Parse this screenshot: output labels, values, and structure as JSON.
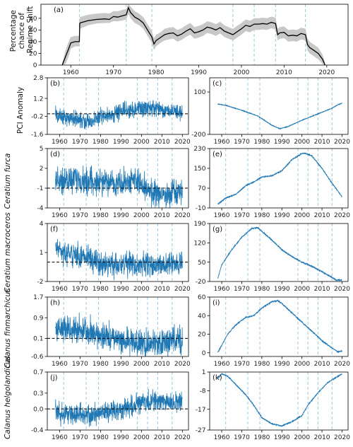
{
  "figure": {
    "line_color": "#1f77b4",
    "black": "#000000",
    "band_color": "#c8c8c8",
    "vline_color": "#9ecae1",
    "vline_years": [
      1962,
      1973,
      1979,
      1998,
      2003,
      2008,
      2015
    ]
  },
  "chart_data": [
    {
      "id": "a",
      "type": "line",
      "label": "(a)",
      "ylabel_lines": [
        "Percentage",
        "chance of",
        "Regime Shift"
      ],
      "xlim": [
        1953,
        2025
      ],
      "ylim": [
        0,
        104
      ],
      "xticks": [
        1960,
        1970,
        1980,
        1990,
        2000,
        2010,
        2020
      ],
      "yticks": [
        0,
        20,
        40,
        60,
        80
      ],
      "series": [
        {
          "x": [
            1958,
            1958.8,
            1959.5,
            1960,
            1961,
            1962,
            1962.1,
            1964,
            1966,
            1968,
            1969,
            1970,
            1971,
            1972,
            1973,
            1973.5,
            1974,
            1975,
            1976,
            1977,
            1978,
            1979,
            1979.5,
            1980,
            1981,
            1982,
            1983,
            1984,
            1985,
            1986,
            1987,
            1988,
            1989,
            1990,
            1991,
            1992,
            1993,
            1994,
            1995,
            1996,
            1997,
            1998,
            1999,
            2000,
            2001,
            2002,
            2003,
            2004,
            2005,
            2006,
            2007,
            2008,
            2008.5,
            2009,
            2010,
            2011,
            2012,
            2013,
            2014,
            2015,
            2015.5,
            2016,
            2017,
            2018,
            2019,
            2019.6
          ],
          "y": [
            0,
            15,
            28,
            38,
            40,
            40,
            72,
            76,
            78,
            79,
            78,
            83,
            82,
            84,
            86,
            98,
            90,
            82,
            78,
            72,
            60,
            48,
            36,
            42,
            47,
            52,
            54,
            55,
            50,
            53,
            58,
            62,
            55,
            57,
            60,
            65,
            63,
            60,
            64,
            58,
            55,
            52,
            57,
            62,
            68,
            66,
            70,
            70,
            71,
            70,
            73,
            71,
            52,
            55,
            56,
            50,
            51,
            50,
            54,
            52,
            35,
            30,
            25,
            20,
            10,
            0
          ],
          "lo": [
            0,
            2,
            15,
            28,
            32,
            32,
            62,
            68,
            71,
            72,
            72,
            75,
            75,
            76,
            78,
            88,
            80,
            72,
            68,
            62,
            50,
            38,
            26,
            32,
            38,
            42,
            44,
            45,
            40,
            43,
            48,
            52,
            45,
            47,
            50,
            55,
            53,
            50,
            54,
            48,
            45,
            42,
            47,
            52,
            58,
            56,
            60,
            60,
            61,
            60,
            63,
            61,
            42,
            45,
            46,
            40,
            41,
            40,
            44,
            42,
            25,
            20,
            15,
            10,
            2,
            0
          ],
          "hi": [
            4,
            26,
            40,
            48,
            50,
            50,
            82,
            86,
            88,
            89,
            88,
            92,
            92,
            94,
            96,
            104,
            100,
            92,
            88,
            82,
            70,
            58,
            46,
            52,
            56,
            62,
            64,
            65,
            60,
            63,
            68,
            72,
            65,
            67,
            70,
            75,
            73,
            70,
            74,
            68,
            65,
            62,
            67,
            72,
            78,
            76,
            80,
            80,
            81,
            80,
            83,
            81,
            62,
            65,
            66,
            60,
            61,
            60,
            64,
            62,
            45,
            40,
            35,
            30,
            18,
            4
          ]
        }
      ]
    },
    {
      "id": "b",
      "type": "line",
      "label": "(b)",
      "ylabel": "PCI Anomaly",
      "xlim": [
        1954,
        2023
      ],
      "ylim": [
        -1.6,
        2.8
      ],
      "yticks": [
        -1.6,
        -0.2,
        1.2,
        2.8
      ],
      "ytick_labels": [
        "-1.6",
        "-0.2",
        "1.2",
        "2.8"
      ],
      "xticks": [
        1960,
        1970,
        1980,
        1990,
        2000,
        2010,
        2020
      ],
      "ref_line": 0,
      "series": [
        {
          "x_start": 1958,
          "x_end": 2020,
          "knots_x": [
            1958,
            1965,
            1972,
            1976,
            1980,
            1986,
            1990,
            1995,
            2000,
            2005,
            2010,
            2015,
            2020
          ],
          "knots_y": [
            -0.1,
            -0.35,
            -0.5,
            -0.65,
            -0.15,
            -0.05,
            0.15,
            0.35,
            0.5,
            0.45,
            0.3,
            0.2,
            0.1
          ],
          "amp": 0.55
        }
      ]
    },
    {
      "id": "c",
      "type": "line",
      "label": "(c)",
      "xlim": [
        1954,
        2023
      ],
      "ylim": [
        -200,
        200
      ],
      "yticks": [
        -200,
        100
      ],
      "ytick_labels": [
        "-200",
        "100"
      ],
      "xticks": [
        1960,
        1970,
        1980,
        1990,
        2000,
        2010,
        2020
      ],
      "series": [
        {
          "x": [
            1958,
            1962,
            1970,
            1978,
            1985,
            1989,
            1993,
            2000,
            2008,
            2015,
            2018,
            2020
          ],
          "y": [
            15,
            5,
            -30,
            -70,
            -135,
            -160,
            -145,
            -100,
            -55,
            -15,
            10,
            20
          ],
          "noise": 4
        }
      ]
    },
    {
      "id": "d",
      "type": "line",
      "label": "(d)",
      "ylabel": "Ceratium furca",
      "xlim": [
        1954,
        2023
      ],
      "ylim": [
        -4,
        5
      ],
      "yticks": [
        -4,
        -1,
        2,
        5
      ],
      "ytick_labels": [
        "-4",
        "-1",
        "2",
        "5"
      ],
      "xticks": [
        1960,
        1970,
        1980,
        1990,
        2000,
        2010,
        2020
      ],
      "ref_line": -1,
      "series": [
        {
          "x_start": 1958,
          "x_end": 2020,
          "knots_x": [
            1958,
            1962,
            1970,
            1975,
            1980,
            1990,
            1997,
            2000,
            2005,
            2010,
            2015,
            2020
          ],
          "knots_y": [
            0.3,
            0.2,
            0.2,
            0.0,
            0.0,
            -0.3,
            0.4,
            -0.7,
            -1.8,
            -2.0,
            -1.9,
            -1.7
          ],
          "amp": 1.7
        }
      ]
    },
    {
      "id": "e",
      "type": "line",
      "label": "(e)",
      "xlim": [
        1954,
        2023
      ],
      "ylim": [
        -10,
        230
      ],
      "yticks": [
        -10,
        70,
        150,
        230
      ],
      "ytick_labels": [
        "-10",
        "70",
        "150",
        "230"
      ],
      "xticks": [
        1960,
        1970,
        1980,
        1990,
        2000,
        2010,
        2020
      ],
      "series": [
        {
          "x": [
            1958,
            1962,
            1967,
            1972,
            1976,
            1980,
            1985,
            1990,
            1995,
            2000,
            2002,
            2005,
            2010,
            2015,
            2020
          ],
          "y": [
            5,
            30,
            45,
            80,
            95,
            115,
            120,
            140,
            185,
            210,
            210,
            200,
            150,
            90,
            35
          ],
          "noise": 4
        }
      ]
    },
    {
      "id": "f",
      "type": "line",
      "label": "(f)",
      "ylabel": "Ceratium macroceros",
      "xlim": [
        1954,
        2023
      ],
      "ylim": [
        -2,
        4
      ],
      "yticks": [
        -2,
        1,
        4
      ],
      "ytick_labels": [
        "-2",
        "1",
        "4"
      ],
      "xticks": [
        1960,
        1970,
        1980,
        1990,
        2000,
        2010,
        2020
      ],
      "ref_line": 0,
      "series": [
        {
          "x_start": 1958,
          "x_end": 2020,
          "knots_x": [
            1958,
            1962,
            1967,
            1972,
            1976,
            1980,
            1990,
            2000,
            2010,
            2020
          ],
          "knots_y": [
            1.5,
            1.0,
            0.8,
            0.5,
            0.2,
            -0.2,
            -0.3,
            -0.2,
            -0.2,
            -0.1
          ],
          "amp": 1.0
        }
      ]
    },
    {
      "id": "g",
      "type": "line",
      "label": "(g)",
      "xlim": [
        1954,
        2023
      ],
      "ylim": [
        -20,
        190
      ],
      "yticks": [
        -20,
        50,
        120,
        190
      ],
      "ytick_labels": [
        "-20",
        "50",
        "120",
        "190"
      ],
      "xticks": [
        1960,
        1970,
        1980,
        1990,
        2000,
        2010,
        2020
      ],
      "series": [
        {
          "x": [
            1958,
            1960,
            1965,
            1970,
            1975,
            1978,
            1985,
            1990,
            1995,
            2000,
            2005,
            2010,
            2015,
            2017,
            2020
          ],
          "y": [
            -10,
            40,
            95,
            140,
            172,
            175,
            130,
            95,
            70,
            50,
            35,
            15,
            -5,
            -15,
            -15
          ],
          "noise": 4
        }
      ]
    },
    {
      "id": "h",
      "type": "line",
      "label": "(h)",
      "ylabel": "Calanus finmarchicus",
      "xlim": [
        1954,
        2023
      ],
      "ylim": [
        -0.6,
        1.7
      ],
      "yticks": [
        -0.6,
        0.1,
        0.9,
        1.7
      ],
      "ytick_labels": [
        "-0.6",
        "0.1",
        "0.9",
        "1.7"
      ],
      "xticks": [
        1960,
        1970,
        1980,
        1990,
        2000,
        2010,
        2020
      ],
      "ref_line": 0.1,
      "series": [
        {
          "x_start": 1958,
          "x_end": 2020,
          "knots_x": [
            1958,
            1962,
            1967,
            1972,
            1976,
            1980,
            1985,
            1990,
            1995,
            2000,
            2005,
            2010,
            2015,
            2020
          ],
          "knots_y": [
            0.4,
            0.45,
            0.45,
            0.35,
            0.3,
            0.2,
            0.1,
            0.0,
            -0.05,
            -0.1,
            -0.1,
            -0.05,
            0.0,
            0.05
          ],
          "amp": 0.45
        }
      ]
    },
    {
      "id": "i",
      "type": "line",
      "label": "(i)",
      "xlim": [
        1954,
        2023
      ],
      "ylim": [
        -4,
        60
      ],
      "yticks": [
        0,
        20,
        40,
        60
      ],
      "ytick_labels": [
        "0",
        "20",
        "40",
        "60"
      ],
      "xticks": [
        1960,
        1970,
        1980,
        1990,
        2000,
        2010,
        2020
      ],
      "series": [
        {
          "x": [
            1958,
            1960,
            1963,
            1967,
            1972,
            1976,
            1980,
            1985,
            1988,
            1990,
            1995,
            2000,
            2005,
            2010,
            2015,
            2018,
            2020
          ],
          "y": [
            0,
            8,
            20,
            30,
            38,
            40,
            48,
            55,
            56,
            53,
            43,
            33,
            23,
            13,
            5,
            1,
            2
          ],
          "noise": 1.2
        }
      ]
    },
    {
      "id": "j",
      "type": "line",
      "label": "(j)",
      "ylabel": "Calanus helgolandicus",
      "xlim": [
        1954,
        2023
      ],
      "ylim": [
        -0.4,
        0.7
      ],
      "yticks": [
        -0.4,
        0.0,
        0.3,
        0.7
      ],
      "ytick_labels": [
        "-0.4",
        "0.0",
        "0.3",
        "0.7"
      ],
      "xticks": [
        1960,
        1970,
        1980,
        1990,
        2000,
        2010,
        2020
      ],
      "ref_line": 0,
      "series": [
        {
          "x_start": 1958,
          "x_end": 2020,
          "knots_x": [
            1958,
            1962,
            1967,
            1972,
            1976,
            1980,
            1985,
            1990,
            1995,
            2000,
            2005,
            2010,
            2015,
            2020
          ],
          "knots_y": [
            -0.05,
            -0.08,
            -0.1,
            -0.12,
            -0.12,
            -0.1,
            -0.05,
            0.0,
            0.05,
            0.12,
            0.15,
            0.15,
            0.12,
            0.1
          ],
          "amp": 0.17
        }
      ]
    },
    {
      "id": "k",
      "type": "line",
      "label": "(k)",
      "xlim": [
        1954,
        2023
      ],
      "ylim": [
        -27,
        1
      ],
      "yticks": [
        -27,
        -17,
        -8,
        1
      ],
      "ytick_labels": [
        "-27",
        "-17",
        "-8",
        "1"
      ],
      "xticks": [
        1960,
        1970,
        1980,
        1990,
        2000,
        2010,
        2020
      ],
      "series": [
        {
          "x": [
            1958,
            1960,
            1963,
            1968,
            1972,
            1976,
            1980,
            1985,
            1990,
            1995,
            2000,
            2003,
            2008,
            2013,
            2018,
            2020
          ],
          "y": [
            -2,
            0,
            -1,
            -6,
            -10,
            -15,
            -21,
            -24,
            -25,
            -23,
            -20,
            -15,
            -9,
            -4,
            -1,
            0
          ],
          "noise": 0.5
        }
      ]
    }
  ]
}
